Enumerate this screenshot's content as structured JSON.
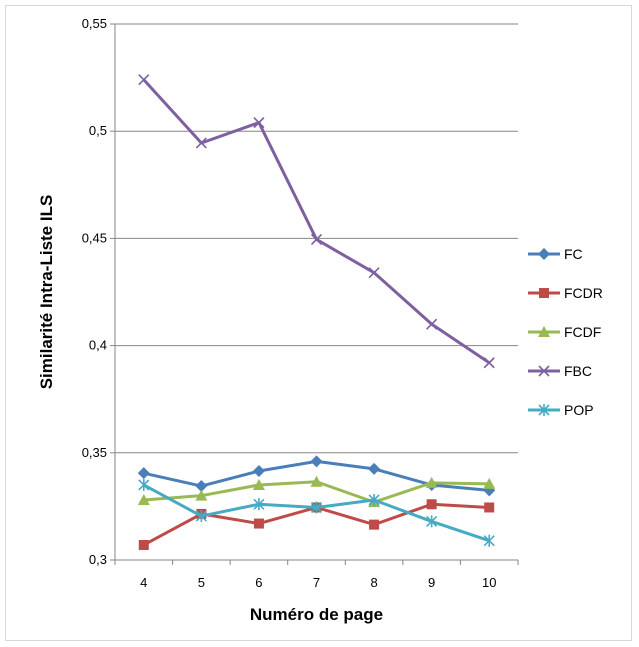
{
  "chart_data": {
    "type": "line",
    "title": "",
    "xlabel": "Numéro de page",
    "ylabel": "Similarité Intra-Liste ILS",
    "x": [
      4,
      5,
      6,
      7,
      8,
      9,
      10
    ],
    "ylim": [
      0.3,
      0.55
    ],
    "y_ticks": [
      "0,3",
      "0,35",
      "0,4",
      "0,45",
      "0,5",
      "0,55"
    ],
    "x_ticks": [
      "4",
      "5",
      "6",
      "7",
      "8",
      "9",
      "10"
    ],
    "grid": true,
    "legend_position": "right",
    "series": [
      {
        "name": "FC",
        "color": "#4a7ebb",
        "marker": "diamond",
        "values": [
          0.3405,
          0.3345,
          0.3415,
          0.346,
          0.3425,
          0.335,
          0.3325
        ]
      },
      {
        "name": "FCDR",
        "color": "#be4b48",
        "marker": "square",
        "values": [
          0.307,
          0.3215,
          0.317,
          0.3245,
          0.3165,
          0.326,
          0.3245
        ]
      },
      {
        "name": "FCDF",
        "color": "#98b954",
        "marker": "triangle",
        "values": [
          0.328,
          0.33,
          0.335,
          0.3365,
          0.327,
          0.336,
          0.3355
        ]
      },
      {
        "name": "FBC",
        "color": "#7d60a0",
        "marker": "x",
        "values": [
          0.524,
          0.4945,
          0.504,
          0.4495,
          0.434,
          0.41,
          0.392
        ]
      },
      {
        "name": "POP",
        "color": "#46aac5",
        "marker": "star",
        "values": [
          0.335,
          0.3205,
          0.326,
          0.3245,
          0.328,
          0.318,
          0.309
        ]
      }
    ]
  }
}
